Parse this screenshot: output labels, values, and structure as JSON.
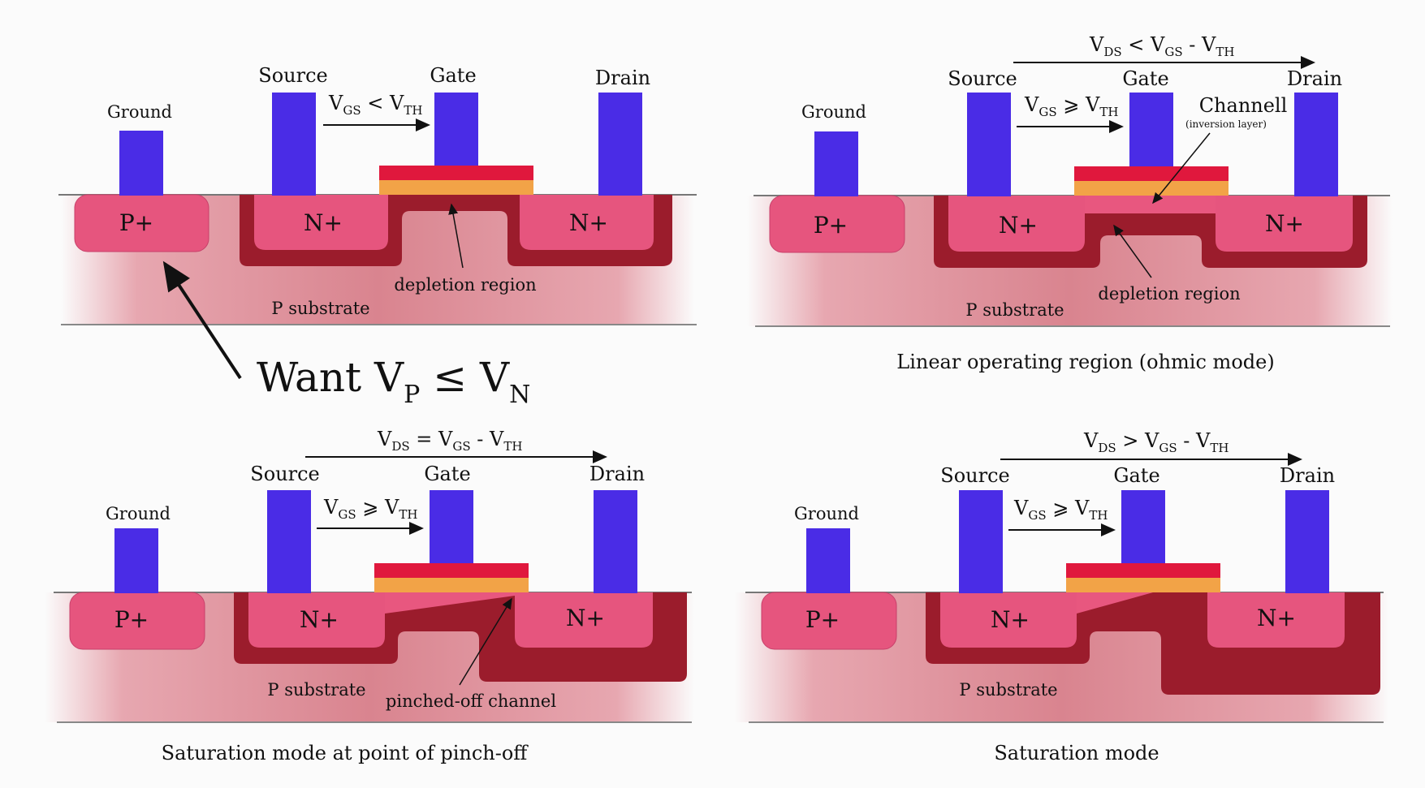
{
  "colors": {
    "terminal": "#4a2ce6",
    "oxide_top": "#e0183d",
    "oxide_bottom": "#f2a347",
    "well": "#e6557e",
    "depletion": "#9b1c2c",
    "substrate": "#e08a98",
    "channel": "#e8577f",
    "line": "#777777"
  },
  "labels": {
    "ground": "Ground",
    "source": "Source",
    "gate": "Gate",
    "drain": "Drain",
    "p_plus": "P+",
    "n_plus": "N+",
    "p_substrate": "P substrate",
    "depletion_region": "depletion region",
    "channel": "Channell",
    "inversion_layer": "(inversion layer)",
    "pinched_off": "pinched-off channel"
  },
  "conditions": {
    "vgs_lt_vth": {
      "a": "V",
      "a_sub": "GS",
      "op": " < ",
      "b": "V",
      "b_sub": "TH"
    },
    "vgs_ge_vth": {
      "a": "V",
      "a_sub": "GS",
      "op": " ⩾ ",
      "b": "V",
      "b_sub": "TH"
    },
    "vds_lt": {
      "a": "V",
      "a_sub": "DS",
      "op": " < ",
      "b": "V",
      "b_sub": "GS",
      "op2": " - ",
      "c": "V",
      "c_sub": "TH"
    },
    "vds_eq": {
      "a": "V",
      "a_sub": "DS",
      "op": " =  ",
      "b": "V",
      "b_sub": "GS",
      "op2": " - ",
      "c": "V",
      "c_sub": "TH"
    },
    "vds_gt": {
      "a": "V",
      "a_sub": "DS",
      "op": " > ",
      "b": "V",
      "b_sub": "GS",
      "op2": " - ",
      "c": "V",
      "c_sub": "TH"
    }
  },
  "want": {
    "text": "Want V",
    "sub1": "P",
    "mid": " ≤ V",
    "sub2": "N"
  },
  "captions": {
    "linear": "Linear operating region (ohmic mode)",
    "pinch": "Saturation mode at point of pinch-off",
    "saturation": "Saturation mode"
  }
}
